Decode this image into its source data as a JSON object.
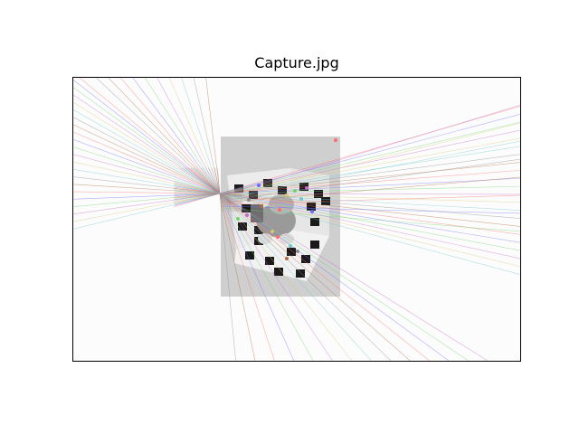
{
  "figure": {
    "title": "Capture.jpg",
    "background": "#ffffff"
  },
  "photo": {
    "subject": "checkerboard-corner-with-toy-figure",
    "board_dark": "#1a1a1a",
    "board_light": "#f2f2f2",
    "wall_gray": "#c8c8c8"
  },
  "epipolar_lines": {
    "count_approx": 60,
    "colors": [
      "#ff6b6b",
      "#6b6bff",
      "#6bd66b",
      "#c96bc9",
      "#d6c86b",
      "#6bc9c9",
      "#8a8a8a",
      "#b06b3a"
    ]
  }
}
